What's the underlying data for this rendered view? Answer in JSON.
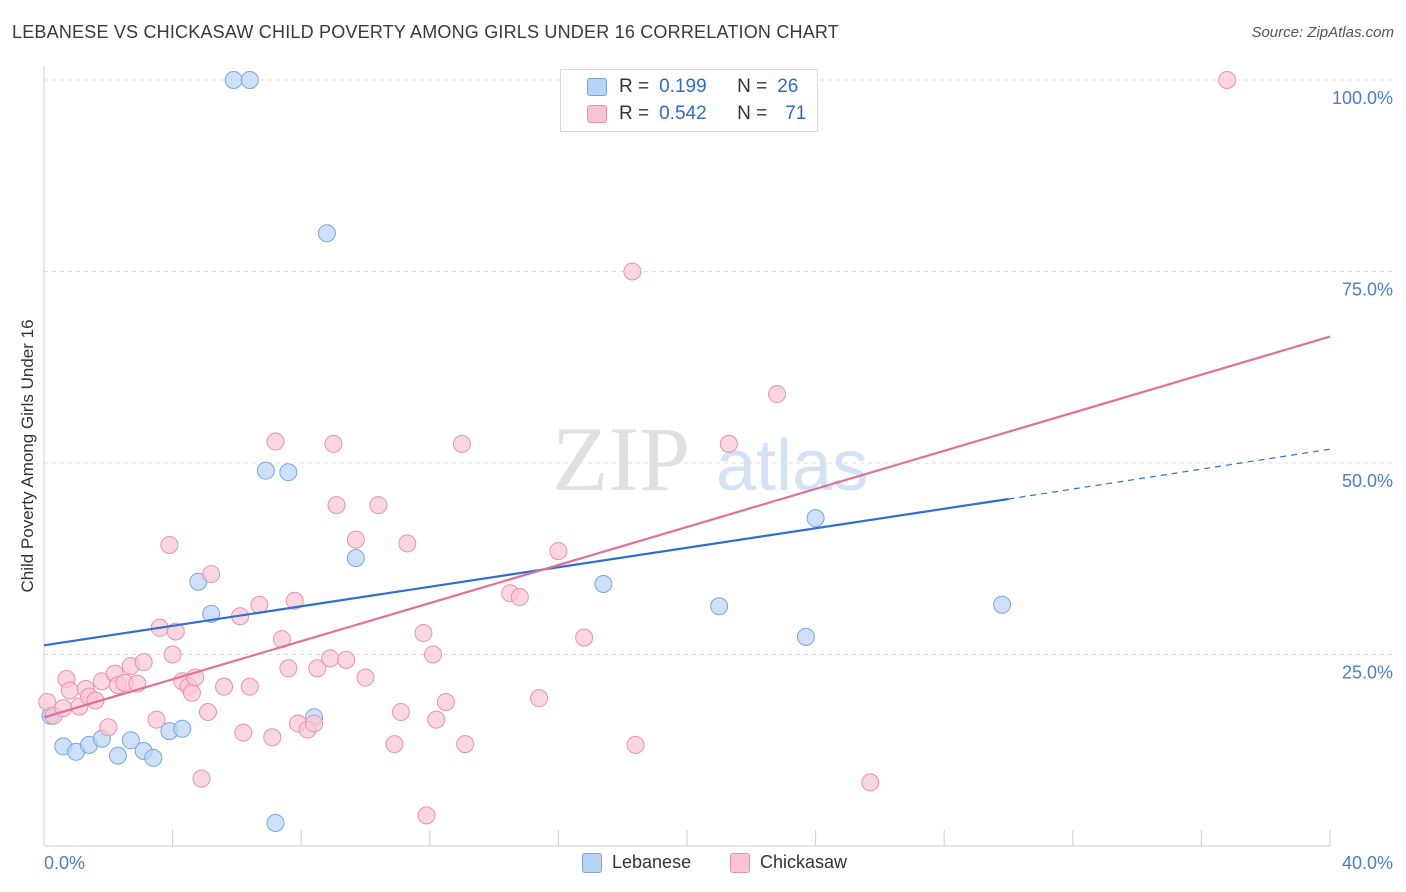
{
  "title": "LEBANESE VS CHICKASAW CHILD POVERTY AMONG GIRLS UNDER 16 CORRELATION CHART",
  "source": "Source: ZipAtlas.com",
  "watermark": {
    "zip": "ZIP",
    "atlas": "atlas"
  },
  "legend": {
    "r_label": "R =",
    "n_label": "N =",
    "rows": [
      {
        "name": "Lebanese",
        "r": "0.199",
        "n": "26",
        "fill": "#b8d3f5",
        "stroke": "#7aa6e0"
      },
      {
        "name": "Chickasaw",
        "r": "0.542",
        "n": "71",
        "fill": "#f8c4d4",
        "stroke": "#e893ae"
      }
    ]
  },
  "chart_data": {
    "type": "scatter",
    "xlabel": "",
    "ylabel": "Child Poverty Among Girls Under 16",
    "xlim": [
      0,
      40
    ],
    "ylim": [
      0,
      100
    ],
    "x_tick_labels": [
      "0.0%",
      "40.0%"
    ],
    "y_ticks": [
      25,
      50,
      75,
      100
    ],
    "y_tick_labels": [
      "25.0%",
      "50.0%",
      "75.0%",
      "100.0%"
    ],
    "grid": "horizontal dashed",
    "legend_position": "top-center",
    "series": [
      {
        "name": "Lebanese",
        "color": "#7aa6e0",
        "fill": "#b8d3f5",
        "line_color": "#2f6fd1",
        "trend": {
          "x0": 0,
          "y0": 26.2,
          "x1": 30.0,
          "y1": 45.3,
          "dash_to_x": 40,
          "dash_to_y": 51.8
        },
        "points": [
          [
            0.2,
            17.0
          ],
          [
            0.6,
            13.0
          ],
          [
            1.0,
            12.3
          ],
          [
            1.4,
            13.2
          ],
          [
            1.8,
            14.0
          ],
          [
            2.3,
            11.8
          ],
          [
            2.7,
            13.8
          ],
          [
            3.1,
            12.4
          ],
          [
            3.4,
            11.5
          ],
          [
            3.9,
            15.0
          ],
          [
            4.3,
            15.3
          ],
          [
            4.8,
            34.5
          ],
          [
            5.2,
            30.3
          ],
          [
            5.9,
            100.0
          ],
          [
            6.4,
            100.0
          ],
          [
            6.9,
            49.0
          ],
          [
            7.2,
            3.0
          ],
          [
            7.6,
            48.8
          ],
          [
            8.4,
            16.8
          ],
          [
            8.8,
            80.0
          ],
          [
            9.7,
            37.6
          ],
          [
            17.4,
            34.2
          ],
          [
            21.0,
            31.3
          ],
          [
            23.7,
            27.3
          ],
          [
            24.0,
            42.8
          ],
          [
            29.8,
            31.5
          ]
        ]
      },
      {
        "name": "Chickasaw",
        "color": "#e893ae",
        "fill": "#f8c4d4",
        "line_color": "#e0709a",
        "trend": {
          "x0": 0,
          "y0": 16.8,
          "x1": 40,
          "y1": 66.5
        },
        "points": [
          [
            0.1,
            18.8
          ],
          [
            0.3,
            17.0
          ],
          [
            0.6,
            18.0
          ],
          [
            0.7,
            21.8
          ],
          [
            0.8,
            20.3
          ],
          [
            1.1,
            18.2
          ],
          [
            1.3,
            20.5
          ],
          [
            1.4,
            19.5
          ],
          [
            1.6,
            19.0
          ],
          [
            1.8,
            21.5
          ],
          [
            2.0,
            15.5
          ],
          [
            2.2,
            22.5
          ],
          [
            2.3,
            21.0
          ],
          [
            2.5,
            21.3
          ],
          [
            2.7,
            23.5
          ],
          [
            2.9,
            21.2
          ],
          [
            3.1,
            24.0
          ],
          [
            3.5,
            16.5
          ],
          [
            3.6,
            28.5
          ],
          [
            3.9,
            39.3
          ],
          [
            4.0,
            25.0
          ],
          [
            4.1,
            28.0
          ],
          [
            4.3,
            21.5
          ],
          [
            4.5,
            20.8
          ],
          [
            4.6,
            20.0
          ],
          [
            4.7,
            22.0
          ],
          [
            4.9,
            8.8
          ],
          [
            5.2,
            35.5
          ],
          [
            5.1,
            17.5
          ],
          [
            5.6,
            20.8
          ],
          [
            6.1,
            30.0
          ],
          [
            6.2,
            14.8
          ],
          [
            6.4,
            20.8
          ],
          [
            6.7,
            31.5
          ],
          [
            7.1,
            14.2
          ],
          [
            7.2,
            52.8
          ],
          [
            7.4,
            27.0
          ],
          [
            7.6,
            23.2
          ],
          [
            7.8,
            32.0
          ],
          [
            7.9,
            16.0
          ],
          [
            8.2,
            15.2
          ],
          [
            8.4,
            16.0
          ],
          [
            8.5,
            23.2
          ],
          [
            8.9,
            24.5
          ],
          [
            9.0,
            52.5
          ],
          [
            9.1,
            44.5
          ],
          [
            9.4,
            24.3
          ],
          [
            9.7,
            40.0
          ],
          [
            10.0,
            22.0
          ],
          [
            10.4,
            44.5
          ],
          [
            10.9,
            13.3
          ],
          [
            11.1,
            17.5
          ],
          [
            11.3,
            39.5
          ],
          [
            11.8,
            27.8
          ],
          [
            11.9,
            4.0
          ],
          [
            12.1,
            25.0
          ],
          [
            12.2,
            16.5
          ],
          [
            12.5,
            18.8
          ],
          [
            13.0,
            52.5
          ],
          [
            13.1,
            13.3
          ],
          [
            14.5,
            33.0
          ],
          [
            14.8,
            32.5
          ],
          [
            15.4,
            19.3
          ],
          [
            16.0,
            38.5
          ],
          [
            16.8,
            27.2
          ],
          [
            18.3,
            75.0
          ],
          [
            18.4,
            13.2
          ],
          [
            21.3,
            52.5
          ],
          [
            22.8,
            59.0
          ],
          [
            25.7,
            8.3
          ],
          [
            36.8,
            100.0
          ]
        ]
      }
    ]
  },
  "bottom_legend": [
    "Lebanese",
    "Chickasaw"
  ]
}
